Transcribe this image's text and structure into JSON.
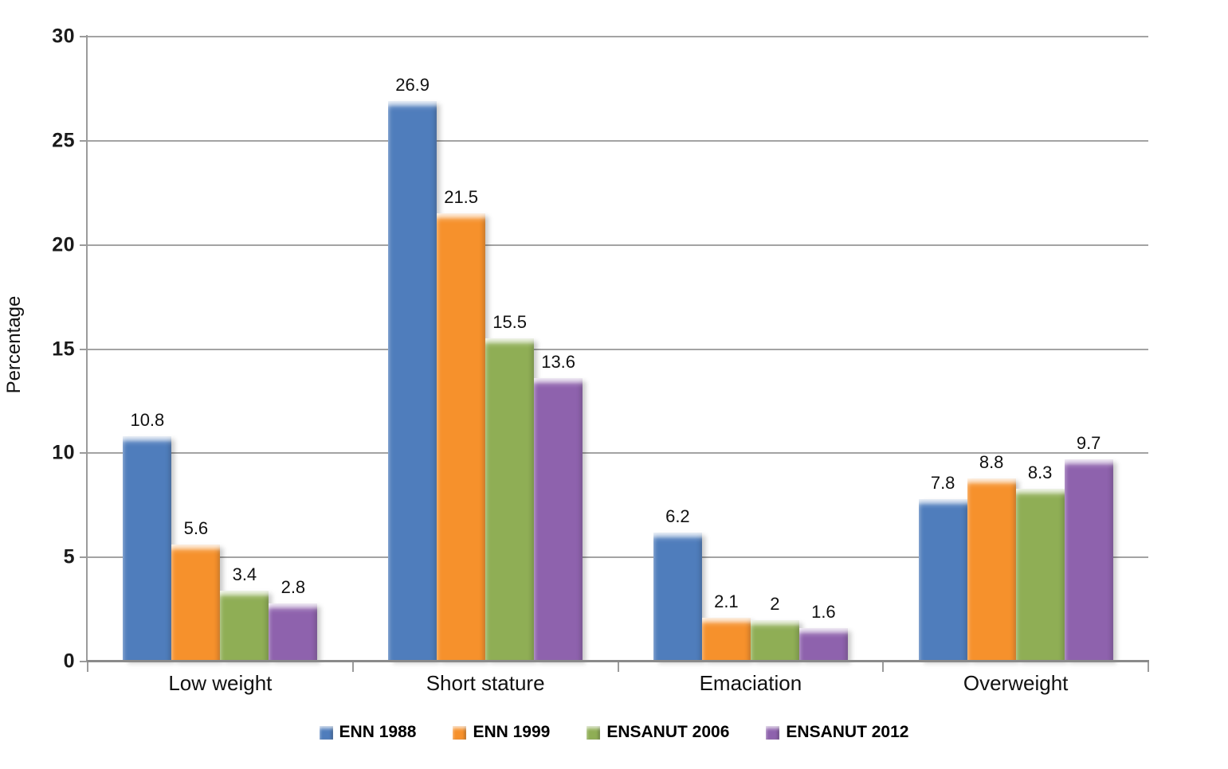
{
  "chart_data": {
    "type": "bar",
    "title": "",
    "categories": [
      "Low weight",
      "Short stature",
      "Emaciation",
      "Overweight"
    ],
    "series": [
      {
        "name": "ENN 1988",
        "color": "#4F7DBC",
        "values": [
          10.8,
          26.9,
          6.2,
          7.8
        ]
      },
      {
        "name": "ENN 1999",
        "color": "#F6912C",
        "values": [
          5.6,
          21.5,
          2.1,
          8.8
        ]
      },
      {
        "name": "ENSANUT 2006",
        "color": "#8FAE55",
        "values": [
          3.4,
          15.5,
          2.0,
          8.3
        ]
      },
      {
        "name": "ENSANUT 2012",
        "color": "#8E62AD",
        "values": [
          2.8,
          13.6,
          1.6,
          9.7
        ]
      }
    ],
    "value_labels": [
      [
        "10.8",
        "26.9",
        "6.2",
        "7.8"
      ],
      [
        "5.6",
        "21.5",
        "2.1",
        "8.8"
      ],
      [
        "3.4",
        "15.5",
        "2",
        "8.3"
      ],
      [
        "2.8",
        "13.6",
        "1.6",
        "9.7"
      ]
    ],
    "xlabel": "",
    "ylabel": "Percentage",
    "ylim": [
      0,
      30
    ],
    "yticks": [
      "0",
      "5",
      "10",
      "15",
      "20",
      "25",
      "30"
    ],
    "grid": true,
    "legend_position": "bottom"
  },
  "style_colors": {
    "gridline": "#A3A3A3",
    "axis": "#9B9B9B",
    "baseline": "#8A8A8A",
    "text": "#1A1A1A"
  }
}
